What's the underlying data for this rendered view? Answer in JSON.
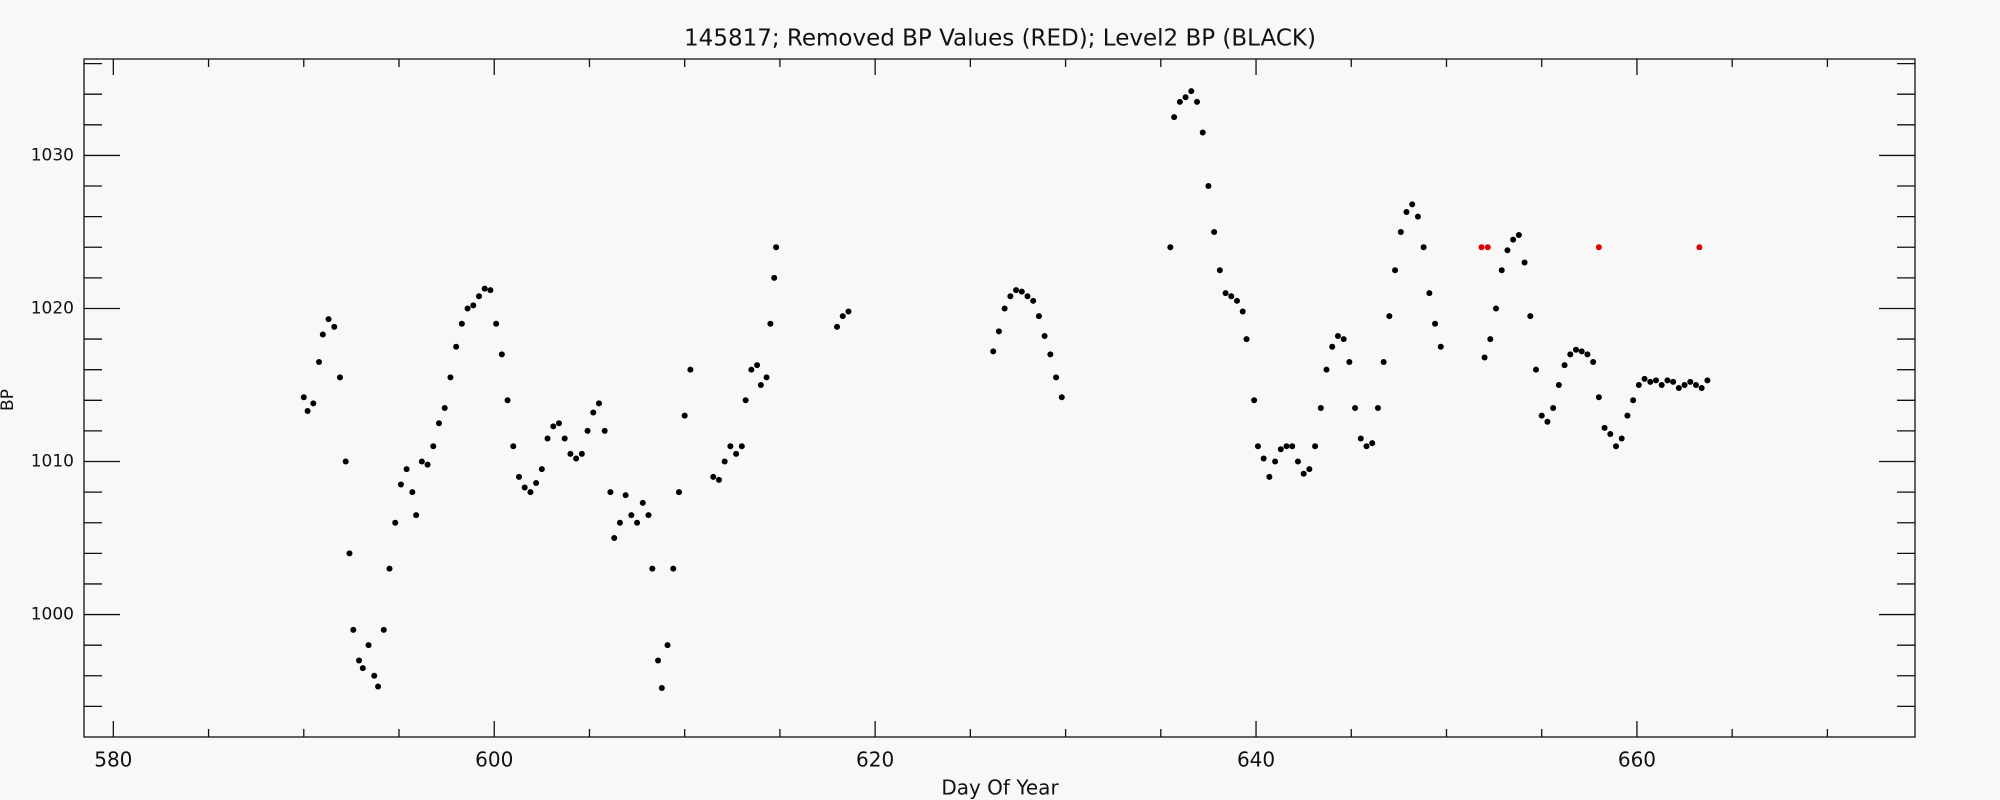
{
  "chart_data": {
    "type": "scatter",
    "title": "145817; Removed BP Values (RED); Level2 BP (BLACK)",
    "x_label": "Day Of Year",
    "y_label": "BP",
    "xlim": [
      578.46,
      674.6
    ],
    "ylim": [
      992,
      1036.3
    ],
    "xticks": [
      580,
      600,
      620,
      640,
      660
    ],
    "xminorticks": [
      585,
      590,
      595,
      605,
      610,
      615,
      625,
      630,
      635,
      645,
      650,
      655,
      665,
      670
    ],
    "yticks": [
      1000,
      1010,
      1020,
      1030
    ],
    "yminorticks": [
      994,
      996,
      998,
      1002,
      1004,
      1006,
      1008,
      1012,
      1014,
      1016,
      1018,
      1022,
      1024,
      1026,
      1028,
      1032,
      1034,
      1036
    ],
    "series": [
      {
        "name": "Level2 BP",
        "color": "#000000",
        "x": [
          590,
          590.2,
          590.5,
          590.8,
          591,
          591.3,
          591.6,
          591.9,
          592.2,
          592.4,
          592.6,
          592.9,
          593.1,
          593.4,
          593.7,
          593.9,
          594.2,
          594.5,
          594.8,
          595.1,
          595.4,
          595.7,
          595.9,
          596.2,
          596.5,
          596.8,
          597.1,
          597.4,
          597.7,
          598,
          598.3,
          598.6,
          598.9,
          599.2,
          599.5,
          599.8,
          600.1,
          600.4,
          600.7,
          601,
          601.3,
          601.6,
          601.9,
          602.2,
          602.5,
          602.8,
          603.1,
          603.4,
          603.7,
          604,
          604.3,
          604.6,
          604.9,
          605.2,
          605.5,
          605.8,
          606.1,
          606.3,
          606.6,
          606.9,
          607.2,
          607.5,
          607.8,
          608.1,
          608.3,
          608.6,
          608.8,
          609.1,
          609.4,
          609.7,
          610,
          610.3,
          611.5,
          611.8,
          612.1,
          612.4,
          612.7,
          613,
          613.2,
          613.5,
          613.8,
          614,
          614.3,
          614.5,
          614.7,
          614.8,
          618,
          618.3,
          618.6,
          626.2,
          626.5,
          626.8,
          627.1,
          627.4,
          627.7,
          628,
          628.3,
          628.6,
          628.9,
          629.2,
          629.5,
          629.8,
          635.5,
          635.7,
          636,
          636.3,
          636.6,
          636.9,
          637.2,
          637.5,
          637.8,
          638.1,
          638.4,
          638.7,
          639,
          639.3,
          639.5,
          639.9,
          640.1,
          640.4,
          640.7,
          641,
          641.3,
          641.6,
          641.9,
          642.2,
          642.5,
          642.8,
          643.1,
          643.4,
          643.7,
          644,
          644.3,
          644.6,
          644.9,
          645.2,
          645.5,
          645.8,
          646.1,
          646.4,
          646.7,
          647,
          647.3,
          647.6,
          647.9,
          648.2,
          648.5,
          648.8,
          649.1,
          649.4,
          649.7,
          652,
          652.3,
          652.6,
          652.9,
          653.2,
          653.5,
          653.8,
          654.1,
          654.4,
          654.7,
          655,
          655.3,
          655.6,
          655.9,
          656.2,
          656.5,
          656.8,
          657.1,
          657.4,
          657.7,
          658,
          658.3,
          658.6,
          658.9,
          659.2,
          659.5,
          659.8,
          660.1,
          660.4,
          660.7,
          661,
          661.3,
          661.6,
          661.9,
          662.2,
          662.5,
          662.8,
          663.1,
          663.4,
          663.7
        ],
        "values": [
          1014.2,
          1013.3,
          1013.8,
          1016.5,
          1018.3,
          1019.3,
          1018.8,
          1015.5,
          1010,
          1004,
          999,
          997,
          996.5,
          998,
          996,
          995.3,
          999,
          1003,
          1006,
          1008.5,
          1009.5,
          1008,
          1006.5,
          1010,
          1009.8,
          1011,
          1012.5,
          1013.5,
          1015.5,
          1017.5,
          1019,
          1020,
          1020.2,
          1020.8,
          1021.3,
          1021.2,
          1019,
          1017,
          1014,
          1011,
          1009,
          1008.3,
          1008,
          1008.6,
          1009.5,
          1011.5,
          1012.3,
          1012.5,
          1011.5,
          1010.5,
          1010.2,
          1010.5,
          1012,
          1013.2,
          1013.8,
          1012,
          1008,
          1005,
          1006,
          1007.8,
          1006.5,
          1006,
          1007.3,
          1006.5,
          1003,
          997,
          995.2,
          998,
          1003,
          1008,
          1013,
          1016,
          1009,
          1008.8,
          1010,
          1011,
          1010.5,
          1011,
          1014,
          1016,
          1016.3,
          1015,
          1015.5,
          1019,
          1022,
          1024,
          1018.8,
          1019.5,
          1019.8,
          1017.2,
          1018.5,
          1020,
          1020.8,
          1021.2,
          1021.1,
          1020.8,
          1020.5,
          1019.5,
          1018.2,
          1017,
          1015.5,
          1014.2,
          1024,
          1032.5,
          1033.5,
          1033.8,
          1034.2,
          1033.5,
          1031.5,
          1028,
          1025,
          1022.5,
          1021,
          1020.8,
          1020.5,
          1019.8,
          1018,
          1014,
          1011,
          1010.2,
          1009,
          1010,
          1010.8,
          1011,
          1011,
          1010,
          1009.2,
          1009.5,
          1011,
          1013.5,
          1016,
          1017.5,
          1018.2,
          1018,
          1016.5,
          1013.5,
          1011.5,
          1011,
          1011.2,
          1013.5,
          1016.5,
          1019.5,
          1022.5,
          1025,
          1026.3,
          1026.8,
          1026,
          1024,
          1021,
          1019,
          1017.5,
          1016.8,
          1018,
          1020,
          1022.5,
          1023.8,
          1024.5,
          1024.8,
          1023,
          1019.5,
          1016,
          1013,
          1012.6,
          1013.5,
          1015,
          1016.3,
          1017,
          1017.3,
          1017.2,
          1017,
          1016.5,
          1014.2,
          1012.2,
          1011.8,
          1011,
          1011.5,
          1013,
          1014,
          1015,
          1015.4,
          1015.2,
          1015.3,
          1015,
          1015.3,
          1015.2,
          1014.8,
          1015,
          1015.2,
          1015,
          1014.8,
          1015.3
        ]
      },
      {
        "name": "Removed BP Values",
        "color": "#e00000",
        "x": [
          651.84,
          652.17,
          658.0,
          663.28
        ],
        "values": [
          1024,
          1024,
          1024,
          1024
        ]
      }
    ]
  }
}
